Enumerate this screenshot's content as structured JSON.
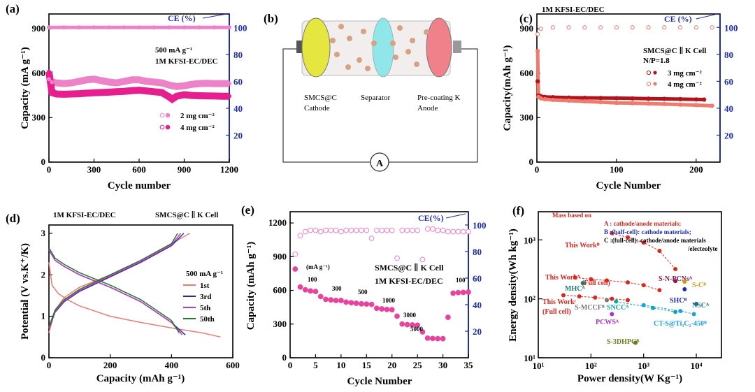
{
  "figure": {
    "colors": {
      "axis": "#000000",
      "ce_axis": "#1b2bb8",
      "pink": "#ee82c8",
      "magenta": "#e61f8f",
      "darkred": "#b0141c",
      "salmon": "#ef7b6d",
      "red": "#e0241c"
    }
  },
  "chart_data": [
    {
      "id": "a",
      "type": "scatter",
      "panel_label": "(a)",
      "xlabel": "Cycle number",
      "ylabel": "Capacity (mA g⁻¹)",
      "y2label": "CE (%)",
      "xlim": [
        0,
        1200
      ],
      "xticks": [
        "0",
        "300",
        "600",
        "900",
        "1200"
      ],
      "ylim": [
        0,
        1000
      ],
      "yticks": [
        "0",
        "300",
        "600",
        "900"
      ],
      "y2lim": [
        0,
        110
      ],
      "y2ticks": [
        "20",
        "40",
        "60",
        "80",
        "100"
      ],
      "annotations": [
        "500 mA g⁻¹",
        "1M KFSI-EC/DEC"
      ],
      "ce_label": "CE (%)",
      "legend": [
        "2  mg cm⁻²",
        "4  mg cm⁻²"
      ],
      "series": [
        {
          "name": "2 mg cm-2 capacity",
          "color": "#ee82c8",
          "x": [
            0,
            20,
            50,
            100,
            150,
            200,
            250,
            300,
            350,
            400,
            450,
            500,
            550,
            600,
            650,
            700,
            750,
            800,
            850,
            900,
            950,
            1000,
            1050,
            1100,
            1150,
            1200
          ],
          "y": [
            560,
            540,
            535,
            530,
            535,
            545,
            555,
            560,
            550,
            540,
            535,
            545,
            555,
            555,
            545,
            540,
            535,
            520,
            510,
            515,
            525,
            530,
            532,
            530,
            530,
            530
          ]
        },
        {
          "name": "4 mg cm-2 capacity",
          "color": "#e61f8f",
          "x": [
            0,
            20,
            50,
            100,
            150,
            200,
            250,
            300,
            350,
            400,
            450,
            500,
            550,
            600,
            650,
            700,
            750,
            800,
            820,
            850,
            900,
            950,
            1000,
            1050,
            1100,
            1150,
            1200
          ],
          "y": [
            610,
            470,
            460,
            458,
            460,
            462,
            465,
            468,
            470,
            472,
            475,
            478,
            482,
            485,
            480,
            475,
            470,
            440,
            425,
            445,
            455,
            450,
            448,
            447,
            446,
            445,
            445
          ]
        },
        {
          "name": "CE",
          "color": "#ee82c8",
          "axis": "right",
          "x": [
            0,
            100,
            200,
            300,
            400,
            500,
            600,
            700,
            800,
            900,
            1000,
            1100,
            1200
          ],
          "y": [
            100,
            100,
            100,
            100,
            100,
            100,
            100,
            100,
            100,
            100,
            100,
            100,
            100
          ]
        }
      ]
    },
    {
      "id": "b",
      "type": "diagram",
      "panel_label": "(b)",
      "labels": {
        "cathode": [
          "SMCS@C",
          "Cathode"
        ],
        "separator": [
          "Separator"
        ],
        "anode": [
          "Pre-coating K",
          "Anode"
        ],
        "meter": "A"
      }
    },
    {
      "id": "c",
      "type": "scatter",
      "panel_label": "(c)",
      "title": "1M KFSI-EC/DEC",
      "xlabel": "Cycle Number",
      "ylabel": "Capacity(mAh g⁻¹)",
      "y2label": "CE (%)",
      "xlim": [
        0,
        230
      ],
      "xticks": [
        "0",
        "100",
        "200"
      ],
      "ylim": [
        0,
        1000
      ],
      "yticks": [
        "0",
        "300",
        "600",
        "900"
      ],
      "y2lim": [
        0,
        110
      ],
      "y2ticks": [
        "20",
        "40",
        "60",
        "80",
        "100"
      ],
      "annotations": [
        "SMCS@C ∥ K Cell",
        "N/P=1.8"
      ],
      "ce_label": "CE (%)",
      "legend": [
        "3  mg cm⁻²",
        "4  mg cm⁻²"
      ],
      "series": [
        {
          "name": "3 mg cm-2",
          "color": "#b0141c",
          "x": [
            1,
            2,
            5,
            10,
            20,
            40,
            60,
            80,
            100,
            120,
            140,
            160,
            180,
            200,
            210
          ],
          "y": [
            545,
            450,
            445,
            440,
            438,
            435,
            434,
            433,
            432,
            430,
            428,
            427,
            425,
            423,
            422
          ]
        },
        {
          "name": "4 mg cm-2",
          "color": "#ef7b6d",
          "x": [
            1,
            2,
            5,
            10,
            20,
            40,
            60,
            80,
            100,
            120,
            140,
            160,
            180,
            200,
            220
          ],
          "y": [
            750,
            440,
            430,
            425,
            420,
            415,
            410,
            405,
            400,
            398,
            395,
            392,
            388,
            385,
            380
          ]
        },
        {
          "name": "CE",
          "color": "#b0141c",
          "axis": "right",
          "x": [
            1,
            5,
            20,
            40,
            60,
            80,
            100,
            120,
            140,
            160,
            180,
            200,
            220
          ],
          "y": [
            95,
            99,
            100,
            100,
            100,
            100,
            100,
            100,
            100,
            100,
            100,
            100,
            100
          ]
        }
      ]
    },
    {
      "id": "d",
      "type": "line",
      "panel_label": "(d)",
      "title": "1M KFSI-EC/DEC",
      "title_right": "SMCS@C ∥ K Cell",
      "xlabel": "Capacity (mAh g⁻¹)",
      "ylabel": "Potential (V vs.K⁺/K)",
      "xlim": [
        0,
        600
      ],
      "xticks": [
        "0",
        "200",
        "400",
        "600"
      ],
      "ylim": [
        0,
        3.2
      ],
      "yticks": [
        "0",
        "1",
        "2",
        "3"
      ],
      "legend_title": "500 mA g⁻¹",
      "legend": [
        "1st",
        "3rd",
        "5th",
        "50th"
      ],
      "series": [
        {
          "name": "1st discharge",
          "color": "#ef7b6d",
          "x": [
            0,
            10,
            30,
            60,
            100,
            200,
            300,
            400,
            500,
            560
          ],
          "y": [
            2.3,
            1.75,
            1.55,
            1.4,
            1.25,
            1.0,
            0.85,
            0.72,
            0.6,
            0.5
          ]
        },
        {
          "name": "1st charge",
          "color": "#ef7b6d",
          "x": [
            0,
            20,
            50,
            100,
            200,
            300,
            400,
            460
          ],
          "y": [
            0.6,
            1.15,
            1.45,
            1.7,
            2.0,
            2.35,
            2.75,
            3.0
          ]
        },
        {
          "name": "3rd discharge",
          "color": "#2a2aa8",
          "x": [
            0,
            20,
            50,
            100,
            200,
            300,
            400,
            445
          ],
          "y": [
            2.6,
            2.35,
            2.2,
            2.0,
            1.7,
            1.35,
            0.85,
            0.55
          ]
        },
        {
          "name": "3rd charge",
          "color": "#2a2aa8",
          "x": [
            0,
            20,
            50,
            100,
            200,
            300,
            400,
            440
          ],
          "y": [
            0.7,
            1.1,
            1.35,
            1.6,
            1.95,
            2.3,
            2.7,
            3.0
          ]
        },
        {
          "name": "5th discharge",
          "color": "#c236c0",
          "x": [
            0,
            20,
            50,
            100,
            200,
            300,
            400,
            435
          ],
          "y": [
            2.6,
            2.35,
            2.2,
            2.0,
            1.7,
            1.35,
            0.85,
            0.55
          ]
        },
        {
          "name": "5th charge",
          "color": "#c236c0",
          "x": [
            0,
            20,
            50,
            100,
            200,
            300,
            400,
            430
          ],
          "y": [
            0.72,
            1.12,
            1.37,
            1.62,
            1.97,
            2.32,
            2.72,
            3.0
          ]
        },
        {
          "name": "50th discharge",
          "color": "#1f7d2a",
          "x": [
            0,
            20,
            50,
            100,
            200,
            300,
            400,
            425
          ],
          "y": [
            2.65,
            2.4,
            2.25,
            2.05,
            1.75,
            1.4,
            0.9,
            0.6
          ]
        },
        {
          "name": "50th charge",
          "color": "#1f7d2a",
          "x": [
            0,
            20,
            50,
            100,
            200,
            300,
            400,
            420
          ],
          "y": [
            0.75,
            1.15,
            1.4,
            1.65,
            2.0,
            2.35,
            2.75,
            3.0
          ]
        }
      ]
    },
    {
      "id": "e",
      "type": "scatter",
      "panel_label": "(e)",
      "xlabel": "Cycle Number",
      "ylabel": "Capacity (mAh g⁻¹)",
      "y2label": "CE(%)",
      "xlim": [
        0,
        35
      ],
      "xticks": [
        "0",
        "5",
        "10",
        "15",
        "20",
        "25",
        "30",
        "35"
      ],
      "ylim": [
        0,
        1300
      ],
      "yticks": [
        "0",
        "300",
        "600",
        "900",
        "1200"
      ],
      "y2lim": [
        0,
        110
      ],
      "y2ticks": [
        "20",
        "40",
        "60",
        "80",
        "100"
      ],
      "annotations": [
        "SMCS@C ∥ K Cell",
        "1M KFSI-EC/DEC"
      ],
      "ce_label": "CE(%)",
      "rate_unit": "(mA g⁻¹)",
      "rate_labels": [
        "100",
        "300",
        "500",
        "1000",
        "3000",
        "5000",
        "100"
      ],
      "series": [
        {
          "name": "capacity",
          "color": "#e8449e",
          "x": [
            1,
            2,
            3,
            4,
            5,
            6,
            7,
            8,
            9,
            10,
            11,
            12,
            13,
            14,
            15,
            16,
            17,
            18,
            19,
            20,
            21,
            22,
            23,
            24,
            25,
            26,
            27,
            28,
            29,
            30,
            31,
            32,
            33,
            34,
            35
          ],
          "y": [
            790,
            630,
            605,
            595,
            590,
            545,
            520,
            515,
            510,
            510,
            495,
            490,
            485,
            480,
            478,
            475,
            440,
            435,
            430,
            428,
            370,
            300,
            295,
            292,
            290,
            230,
            175,
            172,
            170,
            170,
            360,
            575,
            580,
            582,
            585
          ]
        },
        {
          "name": "CE",
          "color": "#ee82c8",
          "axis": "right",
          "x": [
            1,
            2,
            3,
            4,
            5,
            6,
            7,
            8,
            9,
            10,
            11,
            12,
            13,
            14,
            15,
            16,
            17,
            18,
            19,
            20,
            21,
            22,
            23,
            24,
            25,
            26,
            27,
            28,
            29,
            30,
            31,
            32,
            33,
            34,
            35
          ],
          "y": [
            78,
            92,
            95,
            96,
            96,
            95,
            96,
            96,
            96,
            95,
            96,
            96,
            96,
            96,
            96,
            90,
            96,
            96,
            96,
            96,
            75,
            96,
            96,
            96,
            96,
            74,
            97,
            97,
            96,
            96,
            95,
            95,
            95,
            95,
            95
          ]
        }
      ]
    },
    {
      "id": "f",
      "type": "scatter",
      "panel_label": "(f)",
      "xlabel": "Power density(W Kg⁻¹)",
      "ylabel": "Energy density(Wh kg⁻¹)",
      "xscale": "log",
      "yscale": "log",
      "xlim": [
        10,
        30000
      ],
      "ylim": [
        10,
        3000
      ],
      "xticks": [
        "10¹",
        "10²",
        "10³",
        "10⁴"
      ],
      "yticks": [
        "10¹",
        "10²",
        "10³"
      ],
      "legend_lines": [
        "Mass based on",
        "A : cathode/anode materials;",
        "B :(half-cell): cathode materials;",
        "C :(full-cell): cathode/anode materials",
        "/electeolyte"
      ],
      "series": [
        {
          "name": "This Work B",
          "label": "This Workᴮ",
          "color": "#e0241c",
          "x": [
            250,
            500,
            1000,
            2000,
            4000
          ],
          "y": [
            1300,
            1100,
            900,
            650,
            320
          ]
        },
        {
          "name": "This Work A (Full cell)",
          "label": "This Workᴬ (Full cell)",
          "color": "#e0241c",
          "x": [
            50,
            100,
            200,
            500,
            1000,
            2000
          ],
          "y": [
            230,
            215,
            205,
            190,
            170,
            140
          ]
        },
        {
          "name": "This Work C (Full cell)",
          "label": "This Workᶜ (Full cell)",
          "color": "#e0241c",
          "x": [
            30,
            60,
            120,
            250,
            500
          ],
          "y": [
            115,
            110,
            105,
            100,
            95
          ]
        },
        {
          "name": "MHCA",
          "label": "MHCᴬ",
          "color": "#1a7f6a",
          "x": [
            70
          ],
          "y": [
            185
          ]
        },
        {
          "name": "S-MCCF B",
          "label": "S-MCCFᴮ",
          "color": "#777777",
          "x": [
            200
          ],
          "y": [
            95
          ]
        },
        {
          "name": "SNCC",
          "label": "SNCCᴬ",
          "color": "#0aa8a8",
          "x": [
            300,
            1500,
            4000
          ],
          "y": [
            90,
            70,
            60
          ]
        },
        {
          "name": "PCWS",
          "label": "PCWSᴬ",
          "color": "#b52bd6",
          "x": [
            250
          ],
          "y": [
            55
          ]
        },
        {
          "name": "CT-S@Ti3C2-450",
          "label": "CT-S@Ti₃C₂-450ᴮ",
          "color": "#1aa0e6",
          "x": [
            1000,
            5000,
            9000
          ],
          "y": [
            78,
            62,
            55
          ]
        },
        {
          "name": "S-N-PCNs",
          "label": "S-N-PCNsᴬ",
          "color": "#8a1b4a",
          "x": [
            4000
          ],
          "y": [
            200
          ]
        },
        {
          "name": "S-C",
          "label": "S-Cᴮ",
          "color": "#d49a00",
          "x": [
            6000
          ],
          "y": [
            195
          ]
        },
        {
          "name": "SHC",
          "label": "SHCᴮ",
          "color": "#1b2bb8",
          "x": [
            6000
          ],
          "y": [
            145
          ]
        },
        {
          "name": "NSC",
          "label": "NSCᴬ",
          "color": "#1f6f88",
          "x": [
            10000
          ],
          "y": [
            82
          ]
        },
        {
          "name": "S-3DHPC",
          "label": "S-3DHPCᴮ",
          "color": "#6d7a1c",
          "x": [
            700
          ],
          "y": [
            18
          ]
        }
      ]
    }
  ]
}
